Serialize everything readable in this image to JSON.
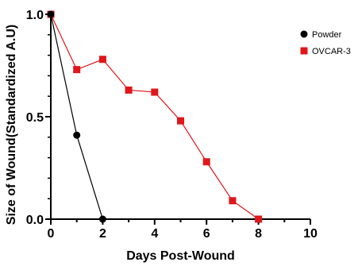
{
  "chart_data": {
    "type": "line",
    "xlabel": "Days Post-Wound",
    "ylabel": "Size of Wound(Standardized A.U)",
    "xlim": [
      0,
      10
    ],
    "ylim": [
      0,
      1
    ],
    "xticks": [
      0,
      2,
      4,
      6,
      8,
      10
    ],
    "yticks": [
      0.0,
      0.5,
      1.0
    ],
    "ytick_labels": [
      "0.0",
      "0.5",
      "1.0"
    ],
    "grid": false,
    "legend_position": "top-right",
    "series": [
      {
        "name": "Powder",
        "color": "#000000",
        "marker": "circle",
        "x": [
          0,
          1,
          2
        ],
        "y": [
          1.0,
          0.41,
          0.0
        ]
      },
      {
        "name": "OVCAR-3",
        "color": "#e0161b",
        "marker": "square",
        "x": [
          0,
          1,
          2,
          3,
          4,
          5,
          6,
          7,
          8
        ],
        "y": [
          1.0,
          0.73,
          0.78,
          0.63,
          0.62,
          0.48,
          0.28,
          0.09,
          0.0
        ]
      }
    ]
  }
}
